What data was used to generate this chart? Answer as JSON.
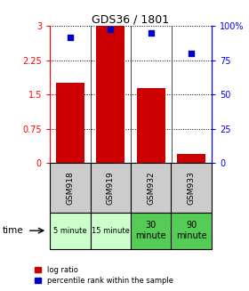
{
  "title": "GDS36 / 1801",
  "samples": [
    "GSM918",
    "GSM919",
    "GSM932",
    "GSM933"
  ],
  "time_labels": [
    "5 minute",
    "15 minute",
    "30\nminute",
    "90\nminute"
  ],
  "time_colors": [
    "#ccffcc",
    "#ccffcc",
    "#55cc55",
    "#55cc55"
  ],
  "log_ratios": [
    1.75,
    3.0,
    1.65,
    0.2
  ],
  "percentile_ranks": [
    92,
    98,
    95,
    80
  ],
  "ylim_left": [
    0,
    3
  ],
  "ylim_right": [
    0,
    100
  ],
  "yticks_left": [
    0,
    0.75,
    1.5,
    2.25,
    3
  ],
  "yticks_left_labels": [
    "0",
    "0.75",
    "1.5",
    "2.25",
    "3"
  ],
  "yticks_right": [
    0,
    25,
    50,
    75,
    100
  ],
  "yticks_right_labels": [
    "0",
    "25",
    "50",
    "75",
    "100%"
  ],
  "bar_color": "#cc0000",
  "dot_color": "#0000cc",
  "bar_width": 0.7,
  "sample_bg": "#cccccc",
  "fig_bg": "#ffffff"
}
